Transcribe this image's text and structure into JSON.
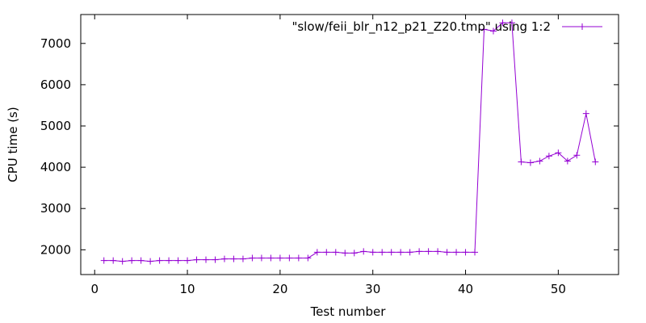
{
  "chart_data": {
    "type": "line",
    "title": "",
    "xlabel": "Test number",
    "ylabel": "CPU time (s)",
    "xlim": [
      -1.5,
      56.5
    ],
    "ylim": [
      1400,
      7700
    ],
    "xticks": [
      0,
      10,
      20,
      30,
      40,
      50
    ],
    "yticks": [
      2000,
      3000,
      4000,
      5000,
      6000,
      7000
    ],
    "grid": false,
    "legend_position": "top-right",
    "series": [
      {
        "name": "\"slow/feii_blr_n12_p21_Z20.tmp\" using 1:2",
        "color": "#9400d3",
        "marker": "plus",
        "x": [
          1,
          2,
          3,
          4,
          5,
          6,
          7,
          8,
          9,
          10,
          11,
          12,
          13,
          14,
          15,
          16,
          17,
          18,
          19,
          20,
          21,
          22,
          23,
          24,
          25,
          26,
          27,
          28,
          29,
          30,
          31,
          32,
          33,
          34,
          35,
          36,
          37,
          38,
          39,
          40,
          41,
          42,
          43,
          44,
          45,
          46,
          47,
          48,
          49,
          50,
          51,
          52,
          53,
          54
        ],
        "y": [
          1740,
          1740,
          1720,
          1740,
          1740,
          1720,
          1740,
          1740,
          1740,
          1740,
          1760,
          1760,
          1760,
          1780,
          1780,
          1780,
          1800,
          1800,
          1800,
          1800,
          1800,
          1800,
          1800,
          1940,
          1940,
          1940,
          1920,
          1920,
          1960,
          1940,
          1940,
          1940,
          1940,
          1940,
          1960,
          1960,
          1960,
          1940,
          1940,
          1940,
          1940,
          7340,
          7300,
          7500,
          7500,
          4130,
          4110,
          4150,
          4270,
          4350,
          4150,
          4290,
          5300,
          4130
        ]
      }
    ]
  }
}
